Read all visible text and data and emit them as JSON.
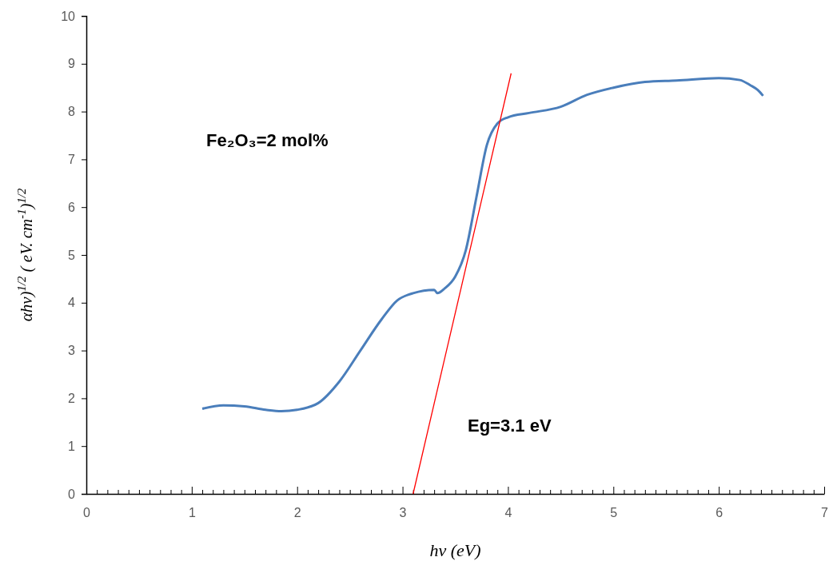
{
  "chart_data": {
    "type": "line",
    "xlabel": "hν (eV)",
    "ylabel": "αhν)$^{1/2}$ ( eV. cm$^{-1}$)$^{1/2}$",
    "xlim": [
      0,
      7
    ],
    "ylim": [
      0,
      10
    ],
    "xticks": [
      0,
      {
        "value": 0.1,
        "label": null
      },
      {
        "value": 0.2,
        "label": null
      },
      {
        "value": 0.3,
        "label": null
      },
      {
        "value": 0.4,
        "label": null
      },
      {
        "value": 0.5,
        "label": null
      },
      {
        "value": 0.6,
        "label": null
      },
      {
        "value": 0.7,
        "label": null
      },
      {
        "value": 0.8,
        "label": null
      },
      {
        "value": 0.9,
        "label": null
      },
      1,
      {
        "value": 1.1,
        "label": null
      },
      {
        "value": 1.2,
        "label": null
      },
      {
        "value": 1.3,
        "label": null
      },
      {
        "value": 1.4,
        "label": null
      },
      {
        "value": 1.5,
        "label": null
      },
      {
        "value": 1.6,
        "label": null
      },
      {
        "value": 1.7,
        "label": null
      },
      {
        "value": 1.8,
        "label": null
      },
      {
        "value": 1.9,
        "label": null
      },
      2,
      {
        "value": 2.1,
        "label": null
      },
      {
        "value": 2.2,
        "label": null
      },
      {
        "value": 2.3,
        "label": null
      },
      {
        "value": 2.4,
        "label": null
      },
      {
        "value": 2.5,
        "label": null
      },
      {
        "value": 2.6,
        "label": null
      },
      {
        "value": 2.7,
        "label": null
      },
      {
        "value": 2.8,
        "label": null
      },
      {
        "value": 2.9,
        "label": null
      },
      3,
      {
        "value": 3.1,
        "label": null
      },
      {
        "value": 3.2,
        "label": null
      },
      {
        "value": 3.3,
        "label": null
      },
      {
        "value": 3.4,
        "label": null
      },
      {
        "value": 3.5,
        "label": null
      },
      {
        "value": 3.6,
        "label": null
      },
      {
        "value": 3.7,
        "label": null
      },
      {
        "value": 3.8,
        "label": null
      },
      {
        "value": 3.9,
        "label": null
      },
      4,
      {
        "value": 4.1,
        "label": null
      },
      {
        "value": 4.2,
        "label": null
      },
      {
        "value": 4.3,
        "label": null
      },
      {
        "value": 4.4,
        "label": null
      },
      {
        "value": 4.5,
        "label": null
      },
      {
        "value": 4.6,
        "label": null
      },
      {
        "value": 4.7,
        "label": null
      },
      {
        "value": 4.8,
        "label": null
      },
      {
        "value": 4.9,
        "label": null
      },
      5,
      {
        "value": 5.1,
        "label": null
      },
      {
        "value": 5.2,
        "label": null
      },
      {
        "value": 5.3,
        "label": null
      },
      {
        "value": 5.4,
        "label": null
      },
      {
        "value": 5.5,
        "label": null
      },
      {
        "value": 5.6,
        "label": null
      },
      {
        "value": 5.7,
        "label": null
      },
      {
        "value": 5.8,
        "label": null
      },
      {
        "value": 5.9,
        "label": null
      },
      6,
      {
        "value": 6.1,
        "label": null
      },
      {
        "value": 6.2,
        "label": null
      },
      {
        "value": 6.3,
        "label": null
      },
      {
        "value": 6.4,
        "label": null
      },
      {
        "value": 6.5,
        "label": null
      },
      {
        "value": 6.6,
        "label": null
      },
      {
        "value": 6.7,
        "label": null
      },
      {
        "value": 6.8,
        "label": null
      },
      {
        "value": 6.9,
        "label": null
      },
      7
    ],
    "yticks": [
      0,
      1,
      2,
      3,
      4,
      5,
      6,
      7,
      8,
      9,
      10
    ],
    "grid": false,
    "marker": "none",
    "line_style": "solid",
    "series": [
      {
        "color": "#4a7ebb",
        "x": [
          1.1,
          1.3,
          1.5,
          1.7,
          1.85,
          2.0,
          2.2,
          2.4,
          2.6,
          2.8,
          2.95,
          3.1,
          3.3,
          3.33,
          3.4,
          3.5,
          3.6,
          3.7,
          3.8,
          3.9,
          4.0,
          4.2,
          4.5,
          4.75,
          5.0,
          5.3,
          5.6,
          6.0,
          6.2,
          6.3,
          6.37,
          6.42
        ],
        "values": [
          1.78,
          1.85,
          1.83,
          1.76,
          1.73,
          1.76,
          1.9,
          2.35,
          3.0,
          3.65,
          4.05,
          4.2,
          4.27,
          4.2,
          4.3,
          4.55,
          5.1,
          6.2,
          7.3,
          7.75,
          7.88,
          7.97,
          8.1,
          8.35,
          8.5,
          8.62,
          8.65,
          8.7,
          8.66,
          8.55,
          8.45,
          8.33
        ]
      },
      {
        "color": "#ff0000",
        "x": [
          3.1,
          4.03
        ],
        "values": [
          0,
          8.8
        ]
      }
    ],
    "annotations": [
      "Fe₂O₃=2 mol%",
      "Eg=3.1 eV"
    ]
  }
}
